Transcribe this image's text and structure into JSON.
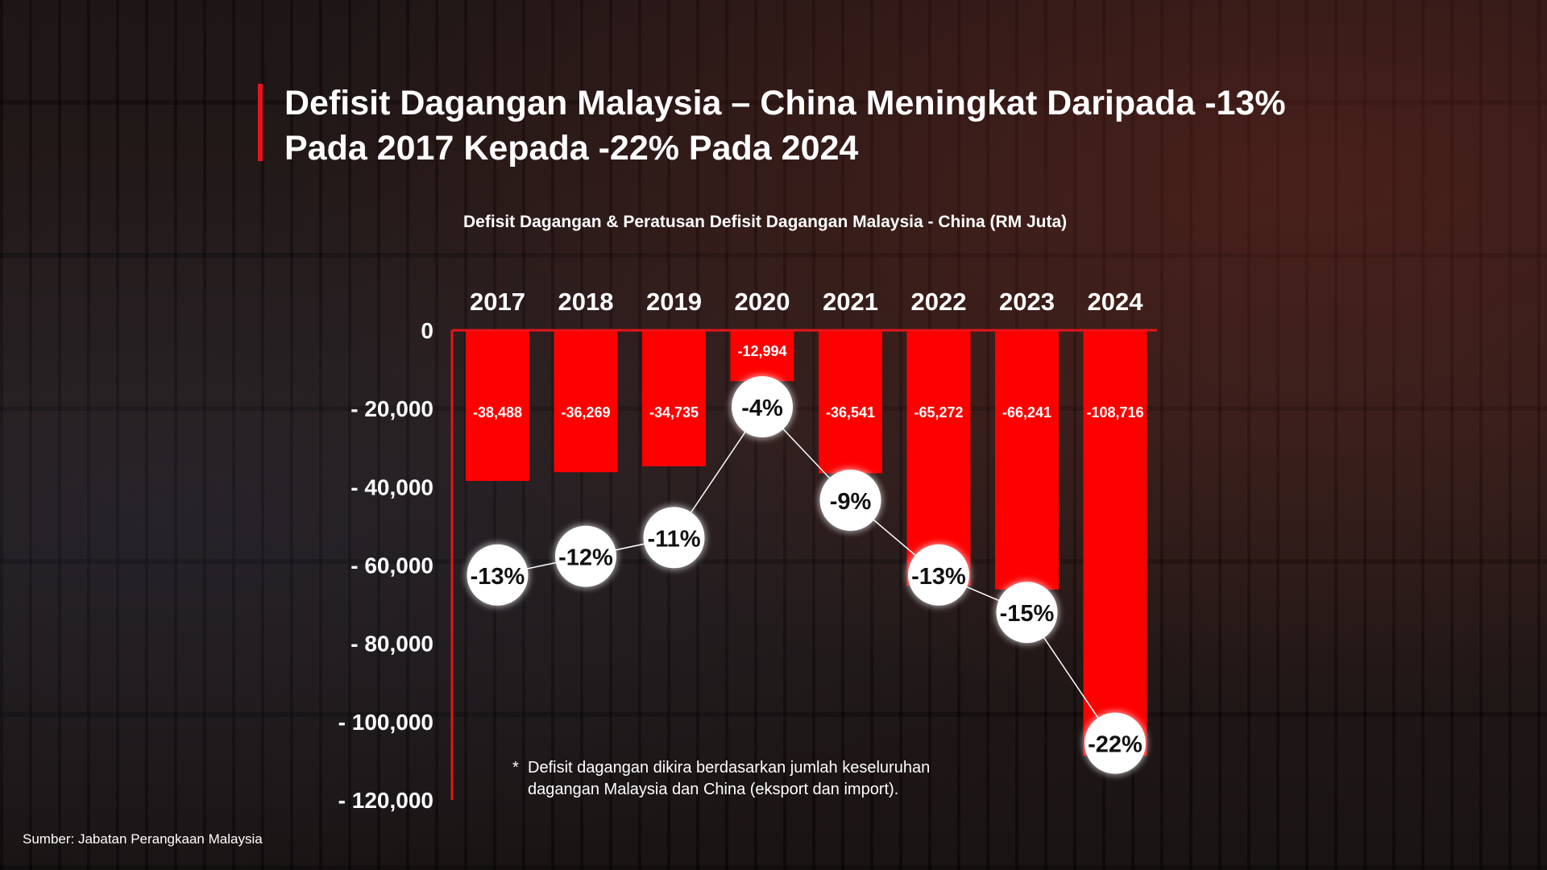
{
  "title": "Defisit Dagangan Malaysia – China Meningkat Daripada -13% Pada 2017 Kepada -22% Pada 2024",
  "subtitle": "Defisit Dagangan & Peratusan Defisit Dagangan Malaysia - China (RM Juta)",
  "note": {
    "marker": "*",
    "text": "Defisit dagangan dikira berdasarkan jumlah keseluruhan dagangan Malaysia dan China (eksport dan import)."
  },
  "source": "Sumber: Jabatan Perangkaan Malaysia",
  "colors": {
    "bar": "#ff0000",
    "accent": "#e8141b",
    "marker_fill": "#ffffff",
    "text": "#ffffff"
  },
  "chart_data": {
    "type": "bar",
    "categories": [
      "2017",
      "2018",
      "2019",
      "2020",
      "2021",
      "2022",
      "2023",
      "2024"
    ],
    "series": [
      {
        "name": "Defisit Dagangan (RM Juta)",
        "values": [
          -38488,
          -36269,
          -34735,
          -12994,
          -36541,
          -65272,
          -66241,
          -108716
        ],
        "labels": [
          "-38,488",
          "-36,269",
          "-34,735",
          "-12,994",
          "-36,541",
          "-65,272",
          "-66,241",
          "-108,716"
        ]
      },
      {
        "name": "Peratusan Defisit Dagangan",
        "type": "line",
        "values": [
          -13,
          -12,
          -11,
          -4,
          -9,
          -13,
          -15,
          -22
        ],
        "labels": [
          "-13%",
          "-12%",
          "-11%",
          "-4%",
          "-9%",
          "-13%",
          "-15%",
          "-22%"
        ]
      }
    ],
    "ylim": [
      -120000,
      0
    ],
    "yticks": [
      0,
      -20000,
      -40000,
      -60000,
      -80000,
      -100000,
      -120000
    ],
    "ytick_labels": [
      "0",
      "- 20,000",
      "- 40,000",
      "- 60,000",
      "- 80,000",
      "- 100,000",
      "- 120,000"
    ],
    "xaxis_position": "top"
  }
}
